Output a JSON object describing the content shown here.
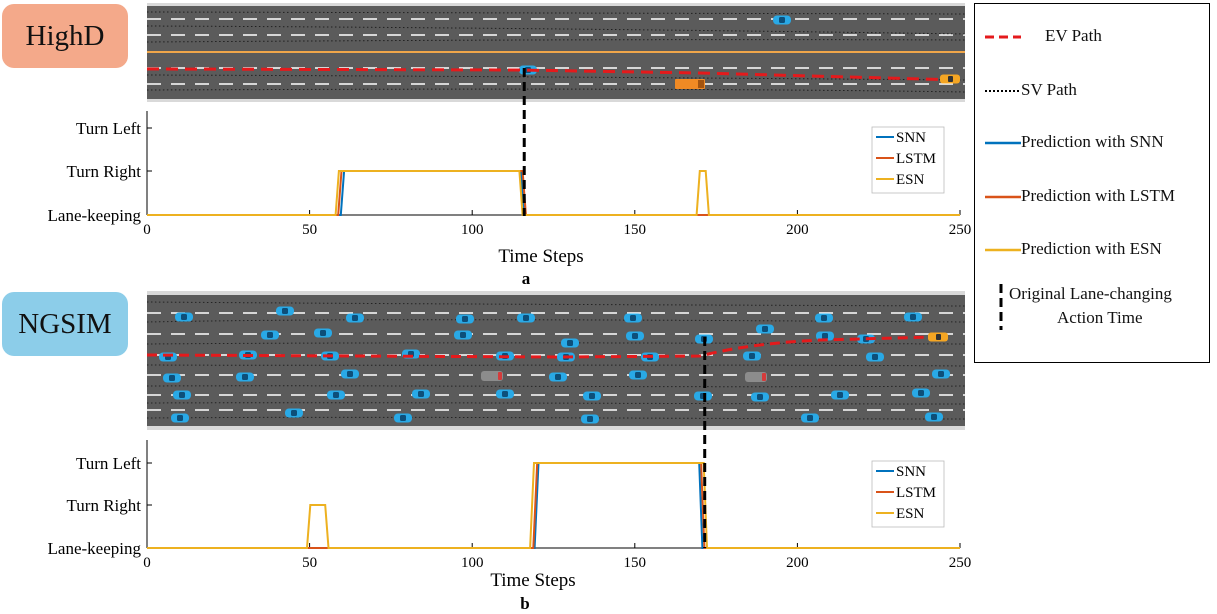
{
  "panels": [
    {
      "badge": "HighD",
      "caption": "a"
    },
    {
      "badge": "NGSIM",
      "caption": "b"
    }
  ],
  "legend": {
    "items": [
      {
        "label": "EV Path",
        "style": "red-dashed",
        "color": "#e41a1c"
      },
      {
        "label": "SV Path",
        "style": "black-dotted",
        "color": "#000000"
      },
      {
        "label": "Prediction with SNN",
        "style": "solid",
        "color": "#0072bd"
      },
      {
        "label": "Prediction with LSTM",
        "style": "solid",
        "color": "#d95319"
      },
      {
        "label": "Prediction with ESN",
        "style": "solid",
        "color": "#edb120"
      },
      {
        "label": "Original Lane-changing Action Time",
        "line1": "Original Lane-changing",
        "line2": "Action Time",
        "style": "black-thick-dashed",
        "color": "#000000"
      }
    ]
  },
  "chart_data": [
    {
      "type": "line",
      "dataset": "HighD",
      "xlabel": "Time Steps",
      "ylabel": "",
      "xlim": [
        0,
        250
      ],
      "xticks": [
        0,
        50,
        100,
        150,
        200,
        250
      ],
      "ytick_labels": [
        "Lane-keeping",
        "Turn Right",
        "Turn Left"
      ],
      "ylim": [
        0,
        2
      ],
      "inline_legend": [
        "SNN",
        "LSTM",
        "ESN"
      ],
      "action_time": 116,
      "series": [
        {
          "name": "SNN",
          "color": "#0072bd",
          "x": [
            0,
            59.6,
            60.6,
            115,
            116,
            250
          ],
          "y": [
            0,
            0,
            1,
            1,
            0,
            0
          ]
        },
        {
          "name": "LSTM",
          "color": "#d95319",
          "x": [
            0,
            58.8,
            59.8,
            115.5,
            116.5,
            250
          ],
          "y": [
            0,
            0,
            1,
            1,
            0,
            0
          ]
        },
        {
          "name": "ESN",
          "color": "#edb120",
          "x": [
            0,
            58,
            59,
            114.5,
            115.5,
            169,
            170,
            171.8,
            172.8,
            250
          ],
          "y": [
            0,
            0,
            1,
            1,
            0,
            0,
            1,
            1,
            0,
            0
          ]
        }
      ]
    },
    {
      "type": "line",
      "dataset": "NGSIM",
      "xlabel": "Time Steps",
      "ylabel": "",
      "xlim": [
        0,
        250
      ],
      "xticks": [
        0,
        50,
        100,
        150,
        200,
        250
      ],
      "ytick_labels": [
        "Lane-keeping",
        "Turn Right",
        "Turn Left"
      ],
      "ylim": [
        0,
        2
      ],
      "inline_legend": [
        "SNN",
        "LSTM",
        "ESN"
      ],
      "action_time": 171.5,
      "series": [
        {
          "name": "SNN",
          "color": "#0072bd",
          "x": [
            0,
            119.2,
            120.4,
            169.8,
            170.8,
            250
          ],
          "y": [
            0,
            0,
            2,
            2,
            0,
            0
          ]
        },
        {
          "name": "LSTM",
          "color": "#d95319",
          "x": [
            0,
            118.8,
            120,
            170.4,
            171.4,
            250
          ],
          "y": [
            0,
            0,
            2,
            2,
            0,
            0
          ]
        },
        {
          "name": "ESN",
          "color": "#edb120",
          "x": [
            0,
            49.2,
            50.2,
            54.8,
            55.8,
            117.8,
            119,
            171.2,
            172.2,
            250
          ],
          "y": [
            0,
            0,
            1,
            1,
            0,
            0,
            2,
            2,
            0,
            0
          ]
        }
      ]
    }
  ]
}
